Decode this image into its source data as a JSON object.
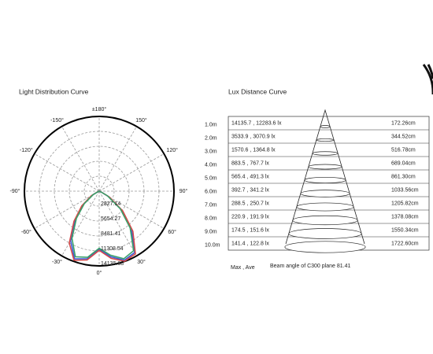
{
  "chart_data": [
    {
      "type": "polar",
      "title": "Light Distribution Curve",
      "theta": [
        -90,
        -80,
        -70,
        -60,
        -50,
        -40,
        -30,
        -20,
        -10,
        0,
        10,
        20,
        30,
        40,
        50,
        60,
        70,
        80,
        90
      ],
      "series": [
        {
          "color": "#3b5bd6",
          "values": [
            0,
            0,
            200,
            1500,
            4000,
            7000,
            10800,
            13600,
            13000,
            11000,
            12600,
            13900,
            13400,
            9500,
            5500,
            2000,
            300,
            0,
            0
          ]
        },
        {
          "color": "#d64a4a",
          "values": [
            0,
            0,
            250,
            1700,
            4300,
            7400,
            11300,
            13900,
            13200,
            11200,
            12900,
            14100,
            13700,
            9900,
            5800,
            2200,
            350,
            0,
            0
          ]
        },
        {
          "color": "#3aa06a",
          "values": [
            0,
            0,
            150,
            1300,
            3700,
            6700,
            10300,
            13200,
            12700,
            10800,
            12300,
            13600,
            13000,
            9100,
            5200,
            1800,
            250,
            0,
            0
          ]
        }
      ],
      "rlim": [
        0,
        14135.68
      ],
      "rticks": [
        2827.14,
        5654.27,
        8481.41,
        11308.54,
        14135.68
      ],
      "angle_ticks": [
        {
          "value": 180,
          "label": "±180°"
        },
        {
          "value": 150,
          "label": "150°"
        },
        {
          "value": -150,
          "label": "-150°"
        },
        {
          "value": 120,
          "label": "120°"
        },
        {
          "value": -120,
          "label": "-120°"
        },
        {
          "value": 90,
          "label": "90°"
        },
        {
          "value": -90,
          "label": "-90°"
        },
        {
          "value": 60,
          "label": "60°"
        },
        {
          "value": -60,
          "label": "-60°"
        },
        {
          "value": 30,
          "label": "30°"
        },
        {
          "value": -30,
          "label": "-30°"
        },
        {
          "value": 0,
          "label": "0°"
        }
      ]
    },
    {
      "type": "lux-distance",
      "title": "Lux Distance Curve",
      "rows": [
        {
          "distance": "1.0m",
          "lux": "14135.7 , 12283.6 lx",
          "diameter": "172.26cm"
        },
        {
          "distance": "2.0m",
          "lux": "3533.9 , 3070.9 lx",
          "diameter": "344.52cm"
        },
        {
          "distance": "3.0m",
          "lux": "1570.6 , 1364.8 lx",
          "diameter": "516.78cm"
        },
        {
          "distance": "4.0m",
          "lux": "883.5 , 767.7 lx",
          "diameter": "689.04cm"
        },
        {
          "distance": "5.0m",
          "lux": "565.4 , 491.3 lx",
          "diameter": "861.30cm"
        },
        {
          "distance": "6.0m",
          "lux": "392.7 , 341.2 lx",
          "diameter": "1033.56cm"
        },
        {
          "distance": "7.0m",
          "lux": "288.5 , 250.7 lx",
          "diameter": "1205.82cm"
        },
        {
          "distance": "8.0m",
          "lux": "220.9 , 191.9 lx",
          "diameter": "1378.08cm"
        },
        {
          "distance": "9.0m",
          "lux": "174.5 , 151.6 lx",
          "diameter": "1550.34cm"
        },
        {
          "distance": "10.0m",
          "lux": "141.4 , 122.8 lx",
          "diameter": "1722.60cm"
        }
      ],
      "legend_note": "Max , Ave",
      "beam_note": "Beam angle of C300 plane 81.41"
    }
  ]
}
